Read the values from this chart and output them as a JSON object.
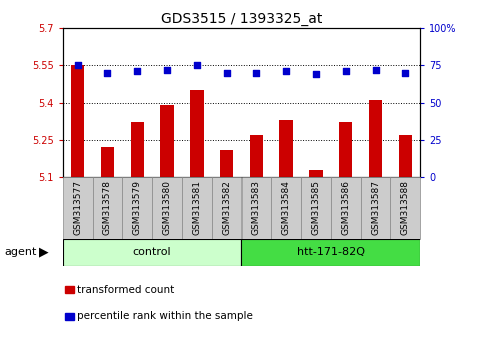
{
  "title": "GDS3515 / 1393325_at",
  "samples": [
    "GSM313577",
    "GSM313578",
    "GSM313579",
    "GSM313580",
    "GSM313581",
    "GSM313582",
    "GSM313583",
    "GSM313584",
    "GSM313585",
    "GSM313586",
    "GSM313587",
    "GSM313588"
  ],
  "bar_values": [
    5.55,
    5.22,
    5.32,
    5.39,
    5.45,
    5.21,
    5.27,
    5.33,
    5.13,
    5.32,
    5.41,
    5.27
  ],
  "dot_values": [
    75,
    70,
    71,
    72,
    75,
    70,
    70,
    71,
    69,
    71,
    72,
    70
  ],
  "bar_color": "#cc0000",
  "dot_color": "#0000cc",
  "ylim_left": [
    5.1,
    5.7
  ],
  "ylim_right": [
    0,
    100
  ],
  "yticks_left": [
    5.1,
    5.25,
    5.4,
    5.55,
    5.7
  ],
  "ytick_labels_left": [
    "5.1",
    "5.25",
    "5.4",
    "5.55",
    "5.7"
  ],
  "yticks_right": [
    0,
    25,
    50,
    75,
    100
  ],
  "ytick_labels_right": [
    "0",
    "25",
    "50",
    "75",
    "100%"
  ],
  "hlines": [
    5.25,
    5.4,
    5.55
  ],
  "groups": [
    {
      "label": "control",
      "start": 0,
      "end": 6,
      "color": "#ccffcc"
    },
    {
      "label": "htt-171-82Q",
      "start": 6,
      "end": 12,
      "color": "#44dd44"
    }
  ],
  "agent_label": "agent",
  "legend_items": [
    {
      "color": "#cc0000",
      "label": "transformed count"
    },
    {
      "color": "#0000cc",
      "label": "percentile rank within the sample"
    }
  ],
  "bar_bottom": 5.1,
  "left_tick_color": "#cc0000",
  "right_tick_color": "#0000cc",
  "sample_box_color": "#cccccc",
  "sample_box_edge": "#888888"
}
